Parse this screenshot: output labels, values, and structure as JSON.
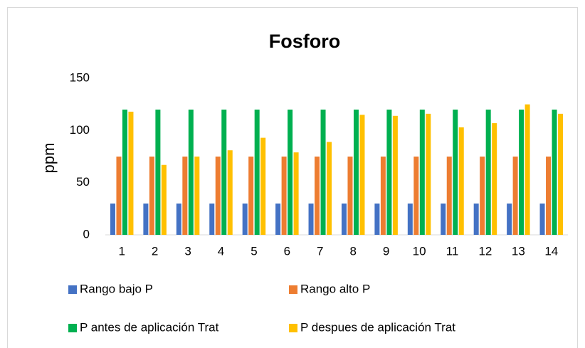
{
  "chart_data": {
    "type": "bar",
    "title": "Fosforo",
    "y_label": "ppm",
    "categories": [
      "1",
      "2",
      "3",
      "4",
      "5",
      "6",
      "7",
      "8",
      "9",
      "10",
      "11",
      "12",
      "13",
      "14"
    ],
    "series": [
      {
        "name": "Rango bajo P",
        "color": "#4472c4",
        "values": [
          30,
          30,
          30,
          30,
          30,
          30,
          30,
          30,
          30,
          30,
          30,
          30,
          30,
          30
        ]
      },
      {
        "name": "Rango alto P",
        "color": "#ed7d31",
        "values": [
          75,
          75,
          75,
          75,
          75,
          75,
          75,
          75,
          75,
          75,
          75,
          75,
          75,
          75
        ]
      },
      {
        "name": "P antes de aplicación Trat",
        "color": "#00b050",
        "values": [
          120,
          120,
          120,
          120,
          120,
          120,
          120,
          120,
          120,
          120,
          120,
          120,
          120,
          120
        ]
      },
      {
        "name": "P despues de aplicación Trat",
        "color": "#ffc000",
        "values": [
          118,
          67,
          75,
          81,
          93,
          79,
          89,
          115,
          114,
          116,
          103,
          107,
          125,
          116
        ]
      }
    ],
    "ylim": [
      0,
      150
    ],
    "yticks": [
      0,
      50,
      100,
      150
    ],
    "grid": false,
    "legend": "bottom"
  }
}
